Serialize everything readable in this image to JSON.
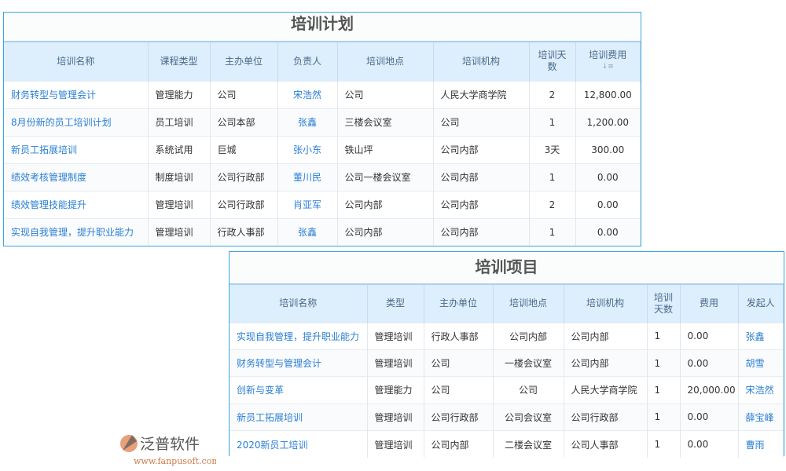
{
  "plan": {
    "title": "培训计划",
    "headers": [
      "培训名称",
      "课程类型",
      "主办单位",
      "负责人",
      "培训地点",
      "培训机构",
      "培训天数",
      "培训费用"
    ],
    "sort_icon": "sort-icon",
    "rows": [
      [
        "财务转型与管理会计",
        "管理能力",
        "公司",
        "宋浩然",
        "公司",
        "人民大学商学院",
        "2",
        "12,800.00"
      ],
      [
        "8月份新的员工培训计划",
        "员工培训",
        "公司本部",
        "张鑫",
        "三楼会议室",
        "公司",
        "1",
        "1,200.00"
      ],
      [
        "新员工拓展培训",
        "系统试用",
        "巨城",
        "张小东",
        "铁山坪",
        "公司内部",
        "3天",
        "300.00"
      ],
      [
        "绩效考核管理制度",
        "制度培训",
        "公司行政部",
        "董川民",
        "公司一楼会议室",
        "公司内部",
        "1",
        "0.00"
      ],
      [
        "绩效管理技能提升",
        "管理培训",
        "公司行政部",
        "肖亚军",
        "公司内部",
        "公司内部",
        "2",
        "0.00"
      ],
      [
        "实现自我管理，提升职业能力",
        "管理培训",
        "行政人事部",
        "张鑫",
        "公司内部",
        "公司内部",
        "1",
        "0.00"
      ]
    ]
  },
  "project": {
    "title": "培训项目",
    "headers": [
      "培训名称",
      "类型",
      "主办单位",
      "培训地点",
      "培训机构",
      "培训天数",
      "费用",
      "发起人"
    ],
    "rows": [
      [
        "实现自我管理，提升职业能力",
        "管理培训",
        "行政人事部",
        "公司内部",
        "公司内部",
        "1",
        "0.00",
        "张鑫"
      ],
      [
        "财务转型与管理会计",
        "管理培训",
        "公司",
        "一楼会议室",
        "公司内部",
        "1",
        "0.00",
        "胡雪"
      ],
      [
        "创新与变革",
        "管理能力",
        "公司",
        "公司",
        "人民大学商学院",
        "1",
        "20,000.00",
        "宋浩然"
      ],
      [
        "新员工拓展培训",
        "管理培训",
        "公司行政部",
        "公司会议室",
        "公司行政部",
        "1",
        "0.00",
        "薛宝峰"
      ],
      [
        "2020新员工培训",
        "管理培训",
        "公司内部",
        "二楼会议室",
        "公司人事部",
        "1",
        "0.00",
        "曹雨"
      ]
    ]
  },
  "watermark": {
    "brand": "泛普软件",
    "url": "www.fanpusoft.com"
  },
  "colors": {
    "border": "#3aa6e0",
    "header_bg": "#ddeefc",
    "link": "#2a7fd4"
  }
}
